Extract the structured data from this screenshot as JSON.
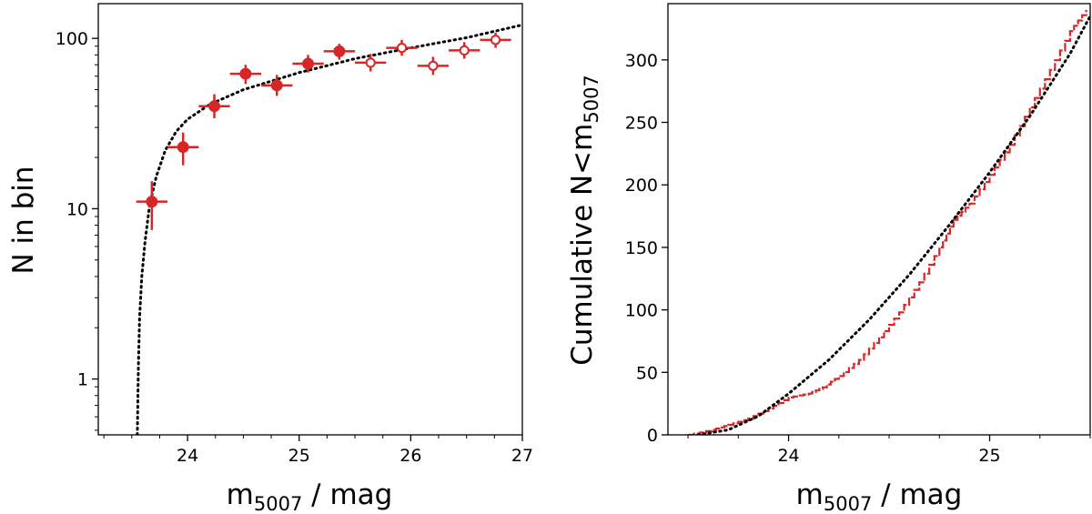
{
  "chart_data": [
    {
      "type": "scatter",
      "title": "",
      "xlabel": {
        "base": "m",
        "sub": "5007",
        "suffix": " / mag"
      },
      "ylabel": "N in bin",
      "xlim": [
        23.2,
        27.0
      ],
      "ylim": [
        0.47,
        160
      ],
      "yscale": "log",
      "grid": false,
      "x_ticks": [
        24,
        25,
        26,
        27
      ],
      "x_tick_labels": [
        "24",
        "25",
        "26",
        "27"
      ],
      "x_minor_ticks": [
        23.25,
        23.5,
        23.75,
        24.25,
        24.5,
        24.75,
        25.25,
        25.5,
        25.75,
        26.25,
        26.5,
        26.75
      ],
      "y_ticks": [
        1,
        10,
        100
      ],
      "y_tick_labels": [
        "1",
        "10",
        "100"
      ],
      "series": [
        {
          "marker": "filled-circle",
          "color": "#d62728",
          "points": [
            {
              "x": 23.68,
              "y": 11,
              "xerr": 0.14,
              "ylo": 7.5,
              "yhi": 14.5
            },
            {
              "x": 23.96,
              "y": 23,
              "xerr": 0.14,
              "ylo": 18,
              "yhi": 28
            },
            {
              "x": 24.24,
              "y": 40,
              "xerr": 0.14,
              "ylo": 34,
              "yhi": 47
            },
            {
              "x": 24.52,
              "y": 62,
              "xerr": 0.14,
              "ylo": 54,
              "yhi": 70
            },
            {
              "x": 24.8,
              "y": 53,
              "xerr": 0.14,
              "ylo": 46,
              "yhi": 61
            },
            {
              "x": 25.08,
              "y": 71,
              "xerr": 0.14,
              "ylo": 63,
              "yhi": 80
            },
            {
              "x": 25.36,
              "y": 84,
              "xerr": 0.14,
              "ylo": 75,
              "yhi": 93
            }
          ]
        },
        {
          "marker": "open-circle",
          "color": "#d62728",
          "points": [
            {
              "x": 25.64,
              "y": 72,
              "xerr": 0.14,
              "ylo": 64,
              "yhi": 81
            },
            {
              "x": 25.92,
              "y": 88,
              "xerr": 0.14,
              "ylo": 79,
              "yhi": 98
            },
            {
              "x": 26.2,
              "y": 69,
              "xerr": 0.14,
              "ylo": 61,
              "yhi": 78
            },
            {
              "x": 26.48,
              "y": 85,
              "xerr": 0.14,
              "ylo": 76,
              "yhi": 95
            },
            {
              "x": 26.76,
              "y": 98,
              "xerr": 0.14,
              "ylo": 88,
              "yhi": 108
            }
          ]
        },
        {
          "type": "line",
          "style": "dotted",
          "color": "#000000",
          "points": [
            {
              "x": 23.55,
              "y": 0.47
            },
            {
              "x": 23.56,
              "y": 1.2
            },
            {
              "x": 23.57,
              "y": 2.3
            },
            {
              "x": 23.59,
              "y": 4.0
            },
            {
              "x": 23.62,
              "y": 6.5
            },
            {
              "x": 23.66,
              "y": 10.5
            },
            {
              "x": 23.72,
              "y": 15.5
            },
            {
              "x": 23.8,
              "y": 22
            },
            {
              "x": 23.9,
              "y": 28.5
            },
            {
              "x": 24.0,
              "y": 33.5
            },
            {
              "x": 24.2,
              "y": 41
            },
            {
              "x": 24.5,
              "y": 50
            },
            {
              "x": 25.0,
              "y": 63
            },
            {
              "x": 25.5,
              "y": 76
            },
            {
              "x": 26.0,
              "y": 88
            },
            {
              "x": 26.5,
              "y": 101
            },
            {
              "x": 27.0,
              "y": 120
            }
          ]
        }
      ]
    },
    {
      "type": "line",
      "title": "",
      "xlabel": {
        "base": "m",
        "sub": "5007",
        "suffix": " / mag"
      },
      "ylabel": {
        "base": "Cumulative N<m",
        "sub": "5007"
      },
      "xlim": [
        23.4,
        25.5
      ],
      "ylim": [
        0,
        345
      ],
      "grid": false,
      "x_ticks": [
        24,
        25
      ],
      "x_tick_labels": [
        "24",
        "25"
      ],
      "x_minor_ticks": [
        23.5,
        23.75,
        24.25,
        24.5,
        24.75,
        25.25,
        25.5
      ],
      "y_ticks": [
        0,
        50,
        100,
        150,
        200,
        250,
        300
      ],
      "y_tick_labels": [
        "0",
        "50",
        "100",
        "150",
        "200",
        "250",
        "300"
      ],
      "series": [
        {
          "style": "step",
          "color": "#d62728",
          "points": [
            {
              "x": 23.5,
              "y": 0
            },
            {
              "x": 23.62,
              "y": 4
            },
            {
              "x": 23.7,
              "y": 8
            },
            {
              "x": 23.8,
              "y": 13
            },
            {
              "x": 23.9,
              "y": 21
            },
            {
              "x": 24.0,
              "y": 30
            },
            {
              "x": 24.1,
              "y": 33
            },
            {
              "x": 24.17,
              "y": 38
            },
            {
              "x": 24.25,
              "y": 47
            },
            {
              "x": 24.35,
              "y": 60
            },
            {
              "x": 24.45,
              "y": 78
            },
            {
              "x": 24.55,
              "y": 98
            },
            {
              "x": 24.65,
              "y": 122
            },
            {
              "x": 24.75,
              "y": 150
            },
            {
              "x": 24.82,
              "y": 172
            },
            {
              "x": 24.9,
              "y": 185
            },
            {
              "x": 25.0,
              "y": 208
            },
            {
              "x": 25.1,
              "y": 232
            },
            {
              "x": 25.2,
              "y": 262
            },
            {
              "x": 25.3,
              "y": 292
            },
            {
              "x": 25.4,
              "y": 323
            },
            {
              "x": 25.48,
              "y": 340
            }
          ]
        },
        {
          "style": "dotted",
          "color": "#000000",
          "points": [
            {
              "x": 23.55,
              "y": 0
            },
            {
              "x": 23.7,
              "y": 4
            },
            {
              "x": 23.85,
              "y": 15
            },
            {
              "x": 24.0,
              "y": 33
            },
            {
              "x": 24.2,
              "y": 60
            },
            {
              "x": 24.4,
              "y": 92
            },
            {
              "x": 24.6,
              "y": 128
            },
            {
              "x": 24.8,
              "y": 168
            },
            {
              "x": 25.0,
              "y": 210
            },
            {
              "x": 25.2,
              "y": 255
            },
            {
              "x": 25.4,
              "y": 305
            },
            {
              "x": 25.5,
              "y": 335
            }
          ]
        }
      ]
    }
  ]
}
